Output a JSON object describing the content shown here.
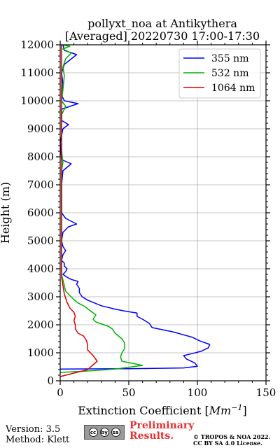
{
  "chart_data": {
    "type": "line",
    "title": "pollyxt_noa at Antikythera",
    "subtitle": "[Averaged] 20220730 17:00-17:30",
    "xlabel": "Extinction Coefficient [",
    "xlabel_unit": "Mm",
    "xlabel_exp": "−1",
    "xlabel_close": "]",
    "ylabel": "Height (m)",
    "xlim": [
      0,
      150
    ],
    "ylim": [
      0,
      12000
    ],
    "xticks": [
      0,
      50,
      100,
      150
    ],
    "yticks": [
      0,
      1000,
      2000,
      3000,
      4000,
      5000,
      6000,
      7000,
      8000,
      9000,
      10000,
      11000,
      12000
    ],
    "xtick_labels": [
      "0",
      "50",
      "100",
      "150"
    ],
    "ytick_labels": [
      "0",
      "1000",
      "2000",
      "3000",
      "4000",
      "5000",
      "6000",
      "7000",
      "8000",
      "9000",
      "10000",
      "11000",
      "12000"
    ],
    "grid": true,
    "legend_position": "top-right",
    "series": [
      {
        "name": "355 nm",
        "color": "#0000ff",
        "points": [
          [
            0,
            420
          ],
          [
            50,
            430
          ],
          [
            90,
            460
          ],
          [
            100,
            520
          ],
          [
            98,
            640
          ],
          [
            92,
            780
          ],
          [
            90,
            900
          ],
          [
            96,
            970
          ],
          [
            103,
            1060
          ],
          [
            108,
            1180
          ],
          [
            109,
            1300
          ],
          [
            102,
            1420
          ],
          [
            96,
            1560
          ],
          [
            82,
            1750
          ],
          [
            67,
            1900
          ],
          [
            65,
            2050
          ],
          [
            60,
            2200
          ],
          [
            56,
            2300
          ],
          [
            56,
            2420
          ],
          [
            46,
            2500
          ],
          [
            40,
            2560
          ],
          [
            30,
            2680
          ],
          [
            25,
            2780
          ],
          [
            20,
            2880
          ],
          [
            16,
            3000
          ],
          [
            14,
            3150
          ],
          [
            14,
            3300
          ],
          [
            12,
            3450
          ],
          [
            13,
            3550
          ],
          [
            8,
            3620
          ],
          [
            5,
            3700
          ],
          [
            2,
            3800
          ],
          [
            4,
            3900
          ],
          [
            5,
            4000
          ],
          [
            3,
            4100
          ],
          [
            3,
            4200
          ],
          [
            1,
            4300
          ],
          [
            2,
            4500
          ],
          [
            4,
            4650
          ],
          [
            2,
            4800
          ],
          [
            1,
            5000
          ],
          [
            2,
            5300
          ],
          [
            6,
            5500
          ],
          [
            12,
            5600
          ],
          [
            8,
            5700
          ],
          [
            4,
            5800
          ],
          [
            1,
            6000
          ],
          [
            1,
            6500
          ],
          [
            1,
            7000
          ],
          [
            2,
            7500
          ],
          [
            8,
            7750
          ],
          [
            1,
            7900
          ],
          [
            0,
            8500
          ],
          [
            2,
            9000
          ],
          [
            6,
            9150
          ],
          [
            1,
            9300
          ],
          [
            1,
            9700
          ],
          [
            13,
            9900
          ],
          [
            3,
            10000
          ],
          [
            1,
            10200
          ],
          [
            2,
            10600
          ],
          [
            1,
            11000
          ],
          [
            3,
            11300
          ],
          [
            12,
            11650
          ],
          [
            3,
            11800
          ],
          [
            2,
            12000
          ]
        ]
      },
      {
        "name": "532 nm",
        "color": "#00b000",
        "points": [
          [
            0,
            300
          ],
          [
            20,
            350
          ],
          [
            40,
            420
          ],
          [
            60,
            550
          ],
          [
            45,
            700
          ],
          [
            44,
            850
          ],
          [
            45,
            1000
          ],
          [
            47,
            1150
          ],
          [
            47,
            1350
          ],
          [
            45,
            1500
          ],
          [
            40,
            1700
          ],
          [
            38,
            1850
          ],
          [
            35,
            1950
          ],
          [
            26,
            2100
          ],
          [
            24,
            2200
          ],
          [
            26,
            2350
          ],
          [
            22,
            2500
          ],
          [
            18,
            2650
          ],
          [
            13,
            2780
          ],
          [
            10,
            2900
          ],
          [
            7,
            3050
          ],
          [
            4,
            3200
          ],
          [
            3,
            3400
          ],
          [
            2,
            3600
          ],
          [
            1,
            3800
          ],
          [
            1,
            4500
          ],
          [
            1,
            5500
          ],
          [
            1,
            6500
          ],
          [
            1,
            7500
          ],
          [
            2,
            7800
          ],
          [
            1,
            8200
          ],
          [
            1,
            9000
          ],
          [
            1,
            9500
          ],
          [
            4,
            9800
          ],
          [
            1,
            10000
          ],
          [
            2,
            10400
          ],
          [
            3,
            10900
          ],
          [
            2,
            11200
          ],
          [
            4,
            11500
          ],
          [
            8,
            11700
          ],
          [
            2,
            11850
          ],
          [
            7,
            11950
          ],
          [
            1,
            12000
          ]
        ]
      },
      {
        "name": "1064 nm",
        "color": "#dd0000",
        "points": [
          [
            0,
            150
          ],
          [
            8,
            250
          ],
          [
            20,
            400
          ],
          [
            27,
            700
          ],
          [
            24,
            900
          ],
          [
            20,
            1100
          ],
          [
            20,
            1300
          ],
          [
            19,
            1450
          ],
          [
            17,
            1600
          ],
          [
            13,
            1700
          ],
          [
            11,
            1850
          ],
          [
            11,
            2000
          ],
          [
            10,
            2150
          ],
          [
            11,
            2300
          ],
          [
            10,
            2450
          ],
          [
            7,
            2600
          ],
          [
            5,
            2800
          ],
          [
            3,
            3100
          ],
          [
            2,
            3400
          ],
          [
            1,
            3700
          ],
          [
            1,
            4200
          ],
          [
            1,
            5000
          ],
          [
            1,
            6000
          ],
          [
            1,
            7000
          ],
          [
            1,
            8000
          ],
          [
            1,
            9000
          ],
          [
            1,
            10000
          ],
          [
            1,
            11000
          ],
          [
            1,
            12000
          ]
        ]
      }
    ]
  },
  "footer": {
    "version": "Version: 3.5",
    "method": "Method: Klett",
    "status_line1": "Preliminary",
    "status_line2": "Results.",
    "copyright_line1": "© TROPOS & NOA 2022.",
    "copyright_line2": "CC BY SA 4.0 License.",
    "license_badge": [
      "cc",
      "by",
      "sa"
    ]
  }
}
